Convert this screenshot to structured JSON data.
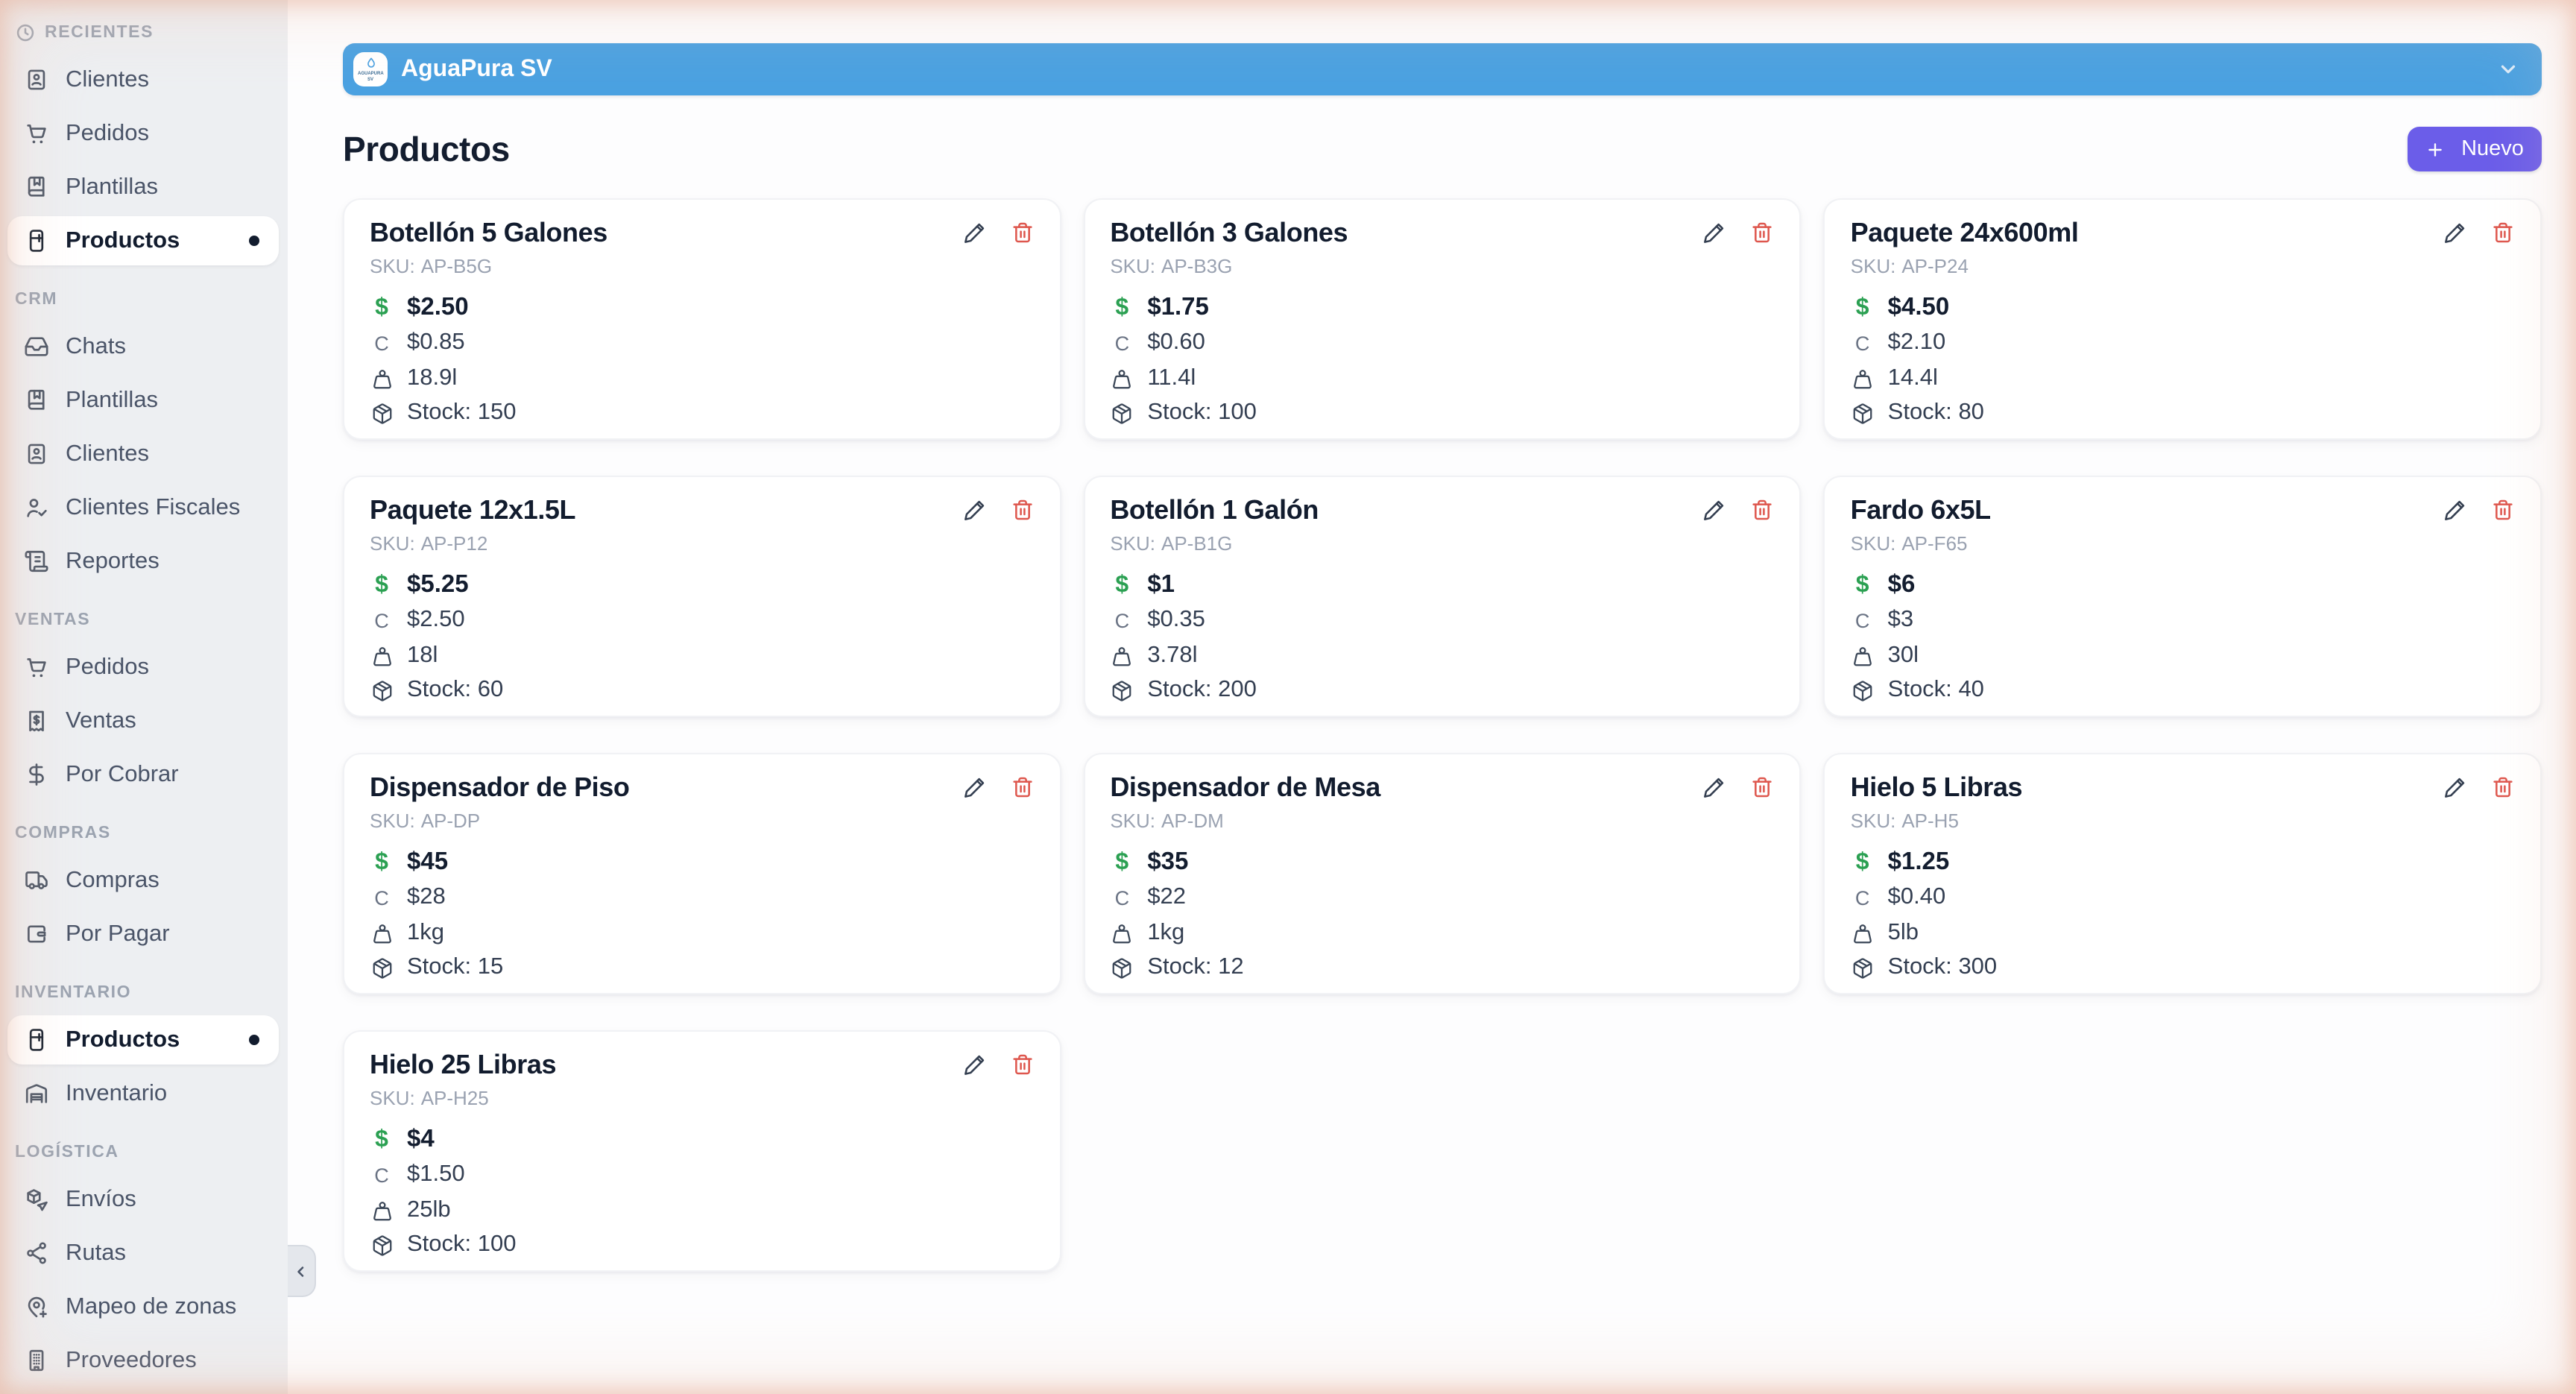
{
  "banner": {
    "title": "AguaPura SV",
    "logo_caption": "AGUAPURA SV"
  },
  "page": {
    "title": "Productos",
    "new_button": "Nuevo"
  },
  "labels": {
    "sku": "SKU:",
    "stock": "Stock:",
    "cost_abbr": "C",
    "currency": "$"
  },
  "colors": {
    "banner_blue": "#4aa1e1",
    "accent_purple": "#6b5de9",
    "price_green": "#2ba052",
    "delete_red": "#de574e",
    "sidebar_bg": "#edeff2"
  },
  "icons": {
    "recent": "clock-icon",
    "collapse": "chevron-left-icon",
    "banner_chevron": "chevron-down-icon",
    "logo_drop": "drop-icon",
    "new": "plus-icon",
    "edit": "pencil-icon",
    "delete": "trash-icon",
    "size": "weight-icon",
    "stock": "package-icon"
  },
  "sidebar": {
    "sections": [
      {
        "title": "RECIENTES",
        "icon": "clock-icon",
        "items": [
          {
            "label": "Clientes",
            "icon": "id-card-icon"
          },
          {
            "label": "Pedidos",
            "icon": "cart-icon"
          },
          {
            "label": "Plantillas",
            "icon": "book-icon"
          },
          {
            "label": "Productos",
            "icon": "fridge-icon",
            "active": true
          }
        ]
      },
      {
        "title": "CRM",
        "items": [
          {
            "label": "Chats",
            "icon": "inbox-icon"
          },
          {
            "label": "Plantillas",
            "icon": "book-icon"
          },
          {
            "label": "Clientes",
            "icon": "id-card-icon"
          },
          {
            "label": "Clientes Fiscales",
            "icon": "user-check-icon"
          },
          {
            "label": "Reportes",
            "icon": "scroll-icon"
          }
        ]
      },
      {
        "title": "VENTAS",
        "items": [
          {
            "label": "Pedidos",
            "icon": "cart-icon"
          },
          {
            "label": "Ventas",
            "icon": "receipt-icon"
          },
          {
            "label": "Por Cobrar",
            "icon": "dollar-icon"
          }
        ]
      },
      {
        "title": "COMPRAS",
        "items": [
          {
            "label": "Compras",
            "icon": "truck-icon"
          },
          {
            "label": "Por Pagar",
            "icon": "wallet-icon"
          }
        ]
      },
      {
        "title": "INVENTARIO",
        "items": [
          {
            "label": "Productos",
            "icon": "fridge-icon",
            "active": true
          },
          {
            "label": "Inventario",
            "icon": "warehouse-icon"
          }
        ]
      },
      {
        "title": "LOGÍSTICA",
        "items": [
          {
            "label": "Envíos",
            "icon": "package-send-icon"
          },
          {
            "label": "Rutas",
            "icon": "route-icon"
          },
          {
            "label": "Mapeo de zonas",
            "icon": "map-pin-plus-icon"
          },
          {
            "label": "Proveedores",
            "icon": "building-icon"
          }
        ]
      }
    ]
  },
  "products": [
    {
      "name": "Botellón 5 Galones",
      "sku": "AP-B5G",
      "price": "$2.50",
      "cost": "$0.85",
      "size": "18.9l",
      "stock": "150"
    },
    {
      "name": "Botellón 3 Galones",
      "sku": "AP-B3G",
      "price": "$1.75",
      "cost": "$0.60",
      "size": "11.4l",
      "stock": "100"
    },
    {
      "name": "Paquete 24x600ml",
      "sku": "AP-P24",
      "price": "$4.50",
      "cost": "$2.10",
      "size": "14.4l",
      "stock": "80"
    },
    {
      "name": "Paquete 12x1.5L",
      "sku": "AP-P12",
      "price": "$5.25",
      "cost": "$2.50",
      "size": "18l",
      "stock": "60"
    },
    {
      "name": "Botellón 1 Galón",
      "sku": "AP-B1G",
      "price": "$1",
      "cost": "$0.35",
      "size": "3.78l",
      "stock": "200"
    },
    {
      "name": "Fardo 6x5L",
      "sku": "AP-F65",
      "price": "$6",
      "cost": "$3",
      "size": "30l",
      "stock": "40"
    },
    {
      "name": "Dispensador de Piso",
      "sku": "AP-DP",
      "price": "$45",
      "cost": "$28",
      "size": "1kg",
      "stock": "15"
    },
    {
      "name": "Dispensador de Mesa",
      "sku": "AP-DM",
      "price": "$35",
      "cost": "$22",
      "size": "1kg",
      "stock": "12"
    },
    {
      "name": "Hielo 5 Libras",
      "sku": "AP-H5",
      "price": "$1.25",
      "cost": "$0.40",
      "size": "5lb",
      "stock": "300"
    },
    {
      "name": "Hielo 25 Libras",
      "sku": "AP-H25",
      "price": "$4",
      "cost": "$1.50",
      "size": "25lb",
      "stock": "100"
    }
  ]
}
